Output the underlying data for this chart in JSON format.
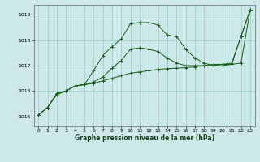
{
  "title": "Graphe pression niveau de la mer (hPa)",
  "bg_color": "#cce8e8",
  "grid_color": "#99cccc",
  "line_color1": "#1a5c1a",
  "line_color2": "#1a5c1a",
  "line_color3": "#1a5c1a",
  "xlim": [
    -0.5,
    23.5
  ],
  "ylim": [
    1014.6,
    1019.4
  ],
  "yticks": [
    1015,
    1016,
    1017,
    1018,
    1019
  ],
  "xticks": [
    0,
    1,
    2,
    3,
    4,
    5,
    6,
    7,
    8,
    9,
    10,
    11,
    12,
    13,
    14,
    15,
    16,
    17,
    18,
    19,
    20,
    21,
    22,
    23
  ],
  "series1_x": [
    0,
    1,
    2,
    3,
    4,
    5,
    6,
    7,
    8,
    9,
    10,
    11,
    12,
    13,
    14,
    15,
    16,
    17,
    18,
    19,
    20,
    21,
    22,
    23
  ],
  "series1_y": [
    1015.05,
    1015.35,
    1015.85,
    1016.0,
    1016.2,
    1016.25,
    1016.3,
    1016.4,
    1016.5,
    1016.6,
    1016.7,
    1016.75,
    1016.8,
    1016.85,
    1016.88,
    1016.9,
    1016.92,
    1016.95,
    1017.0,
    1017.05,
    1017.05,
    1017.05,
    1017.1,
    1019.2
  ],
  "series2_x": [
    0,
    1,
    2,
    3,
    4,
    5,
    6,
    7,
    8,
    9,
    10,
    11,
    12,
    13,
    14,
    15,
    16,
    17,
    18,
    19,
    20,
    21,
    22,
    23
  ],
  "series2_y": [
    1015.05,
    1015.35,
    1015.9,
    1016.0,
    1016.2,
    1016.25,
    1016.35,
    1016.55,
    1016.9,
    1017.2,
    1017.65,
    1017.7,
    1017.65,
    1017.55,
    1017.3,
    1017.1,
    1017.0,
    1017.0,
    1017.0,
    1017.0,
    1017.0,
    1017.05,
    1018.15,
    1019.2
  ],
  "series3_x": [
    0,
    1,
    2,
    3,
    4,
    5,
    6,
    7,
    8,
    9,
    10,
    11,
    12,
    13,
    14,
    15,
    16,
    17,
    18,
    19,
    20,
    21,
    22,
    23
  ],
  "series3_y": [
    1015.05,
    1015.35,
    1015.9,
    1016.0,
    1016.2,
    1016.25,
    1016.8,
    1017.4,
    1017.75,
    1018.05,
    1018.65,
    1018.7,
    1018.7,
    1018.6,
    1018.2,
    1018.15,
    1017.65,
    1017.3,
    1017.1,
    1017.0,
    1017.05,
    1017.1,
    1018.15,
    1019.2
  ]
}
